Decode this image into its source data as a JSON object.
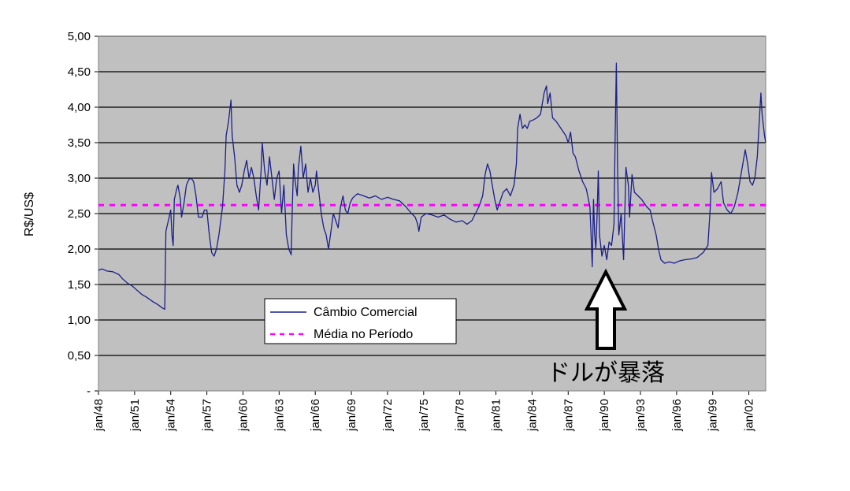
{
  "chart_data": {
    "type": "line",
    "title": "",
    "xlabel": "",
    "ylabel": "R$/US$",
    "ylim": [
      0,
      5
    ],
    "xlim": [
      1948,
      2003.4
    ],
    "yticks": [
      {
        "value": 0,
        "label": "-"
      },
      {
        "value": 0.5,
        "label": "0,50"
      },
      {
        "value": 1.0,
        "label": "1,00"
      },
      {
        "value": 1.5,
        "label": "1,50"
      },
      {
        "value": 2.0,
        "label": "2,00"
      },
      {
        "value": 2.5,
        "label": "2,50"
      },
      {
        "value": 3.0,
        "label": "3,00"
      },
      {
        "value": 3.5,
        "label": "3,50"
      },
      {
        "value": 4.0,
        "label": "4,00"
      },
      {
        "value": 4.5,
        "label": "4,50"
      },
      {
        "value": 5.0,
        "label": "5,00"
      }
    ],
    "xticks": [
      {
        "value": 1948,
        "label": "jan/48"
      },
      {
        "value": 1951,
        "label": "jan/51"
      },
      {
        "value": 1954,
        "label": "jan/54"
      },
      {
        "value": 1957,
        "label": "jan/57"
      },
      {
        "value": 1960,
        "label": "jan/60"
      },
      {
        "value": 1963,
        "label": "jan/63"
      },
      {
        "value": 1966,
        "label": "jan/66"
      },
      {
        "value": 1969,
        "label": "jan/69"
      },
      {
        "value": 1972,
        "label": "jan/72"
      },
      {
        "value": 1975,
        "label": "jan/75"
      },
      {
        "value": 1978,
        "label": "jan/78"
      },
      {
        "value": 1981,
        "label": "jan/81"
      },
      {
        "value": 1984,
        "label": "jan/84"
      },
      {
        "value": 1987,
        "label": "jan/87"
      },
      {
        "value": 1990,
        "label": "jan/90"
      },
      {
        "value": 1993,
        "label": "jan/93"
      },
      {
        "value": 1996,
        "label": "jan/96"
      },
      {
        "value": 1999,
        "label": "jan/99"
      },
      {
        "value": 2002,
        "label": "jan/02"
      }
    ],
    "grid": true,
    "background_color": "#c0c0c0",
    "series": [
      {
        "name": "Câmbio Comercial",
        "color": "#1a1f8a",
        "style": "solid",
        "points": [
          [
            1948.0,
            1.7
          ],
          [
            1948.3,
            1.72
          ],
          [
            1948.7,
            1.69
          ],
          [
            1949.2,
            1.68
          ],
          [
            1949.7,
            1.64
          ],
          [
            1950.0,
            1.58
          ],
          [
            1950.4,
            1.52
          ],
          [
            1950.8,
            1.48
          ],
          [
            1951.2,
            1.42
          ],
          [
            1951.6,
            1.36
          ],
          [
            1952.0,
            1.32
          ],
          [
            1952.5,
            1.26
          ],
          [
            1952.9,
            1.22
          ],
          [
            1953.3,
            1.17
          ],
          [
            1953.5,
            1.15
          ],
          [
            1953.6,
            2.25
          ],
          [
            1953.8,
            2.4
          ],
          [
            1954.0,
            2.55
          ],
          [
            1954.1,
            2.2
          ],
          [
            1954.2,
            2.05
          ],
          [
            1954.3,
            2.7
          ],
          [
            1954.5,
            2.85
          ],
          [
            1954.6,
            2.9
          ],
          [
            1954.8,
            2.7
          ],
          [
            1954.9,
            2.45
          ],
          [
            1955.1,
            2.65
          ],
          [
            1955.3,
            2.9
          ],
          [
            1955.5,
            2.98
          ],
          [
            1955.7,
            3.0
          ],
          [
            1955.9,
            2.95
          ],
          [
            1956.1,
            2.75
          ],
          [
            1956.3,
            2.45
          ],
          [
            1956.6,
            2.45
          ],
          [
            1956.8,
            2.55
          ],
          [
            1957.0,
            2.55
          ],
          [
            1957.2,
            2.2
          ],
          [
            1957.4,
            1.95
          ],
          [
            1957.6,
            1.9
          ],
          [
            1957.8,
            2.0
          ],
          [
            1958.0,
            2.2
          ],
          [
            1958.3,
            2.6
          ],
          [
            1958.5,
            3.1
          ],
          [
            1958.6,
            3.6
          ],
          [
            1958.8,
            3.8
          ],
          [
            1959.0,
            4.1
          ],
          [
            1959.1,
            3.6
          ],
          [
            1959.3,
            3.3
          ],
          [
            1959.5,
            2.9
          ],
          [
            1959.7,
            2.8
          ],
          [
            1959.9,
            2.9
          ],
          [
            1960.1,
            3.1
          ],
          [
            1960.3,
            3.25
          ],
          [
            1960.5,
            3.0
          ],
          [
            1960.7,
            3.15
          ],
          [
            1960.9,
            3.0
          ],
          [
            1961.1,
            2.75
          ],
          [
            1961.3,
            2.55
          ],
          [
            1961.5,
            3.1
          ],
          [
            1961.6,
            3.5
          ],
          [
            1961.8,
            3.1
          ],
          [
            1962.0,
            2.9
          ],
          [
            1962.2,
            3.3
          ],
          [
            1962.4,
            3.0
          ],
          [
            1962.6,
            2.7
          ],
          [
            1962.8,
            3.0
          ],
          [
            1963.0,
            3.1
          ],
          [
            1963.2,
            2.5
          ],
          [
            1963.4,
            2.9
          ],
          [
            1963.6,
            2.2
          ],
          [
            1963.8,
            2.0
          ],
          [
            1964.0,
            1.92
          ],
          [
            1964.1,
            2.6
          ],
          [
            1964.2,
            3.2
          ],
          [
            1964.3,
            3.0
          ],
          [
            1964.5,
            2.75
          ],
          [
            1964.6,
            3.15
          ],
          [
            1964.8,
            3.45
          ],
          [
            1965.0,
            3.0
          ],
          [
            1965.2,
            3.2
          ],
          [
            1965.4,
            2.8
          ],
          [
            1965.6,
            3.0
          ],
          [
            1965.8,
            2.8
          ],
          [
            1966.0,
            2.9
          ],
          [
            1966.1,
            3.1
          ],
          [
            1966.3,
            2.8
          ],
          [
            1966.5,
            2.5
          ],
          [
            1966.7,
            2.3
          ],
          [
            1966.9,
            2.2
          ],
          [
            1967.1,
            2.0
          ],
          [
            1967.3,
            2.25
          ],
          [
            1967.5,
            2.5
          ],
          [
            1967.7,
            2.4
          ],
          [
            1967.9,
            2.3
          ],
          [
            1968.1,
            2.6
          ],
          [
            1968.3,
            2.75
          ],
          [
            1968.5,
            2.55
          ],
          [
            1968.7,
            2.5
          ],
          [
            1968.9,
            2.65
          ],
          [
            1969.1,
            2.72
          ],
          [
            1969.5,
            2.78
          ],
          [
            1970.0,
            2.75
          ],
          [
            1970.5,
            2.72
          ],
          [
            1971.0,
            2.75
          ],
          [
            1971.5,
            2.7
          ],
          [
            1972.0,
            2.73
          ],
          [
            1972.5,
            2.7
          ],
          [
            1973.0,
            2.68
          ],
          [
            1973.5,
            2.6
          ],
          [
            1974.0,
            2.5
          ],
          [
            1974.3,
            2.45
          ],
          [
            1974.5,
            2.35
          ],
          [
            1974.6,
            2.25
          ],
          [
            1974.8,
            2.45
          ],
          [
            1975.2,
            2.5
          ],
          [
            1975.7,
            2.48
          ],
          [
            1976.2,
            2.45
          ],
          [
            1976.7,
            2.48
          ],
          [
            1977.2,
            2.42
          ],
          [
            1977.7,
            2.38
          ],
          [
            1978.2,
            2.4
          ],
          [
            1978.6,
            2.35
          ],
          [
            1979.0,
            2.4
          ],
          [
            1979.3,
            2.5
          ],
          [
            1979.6,
            2.6
          ],
          [
            1979.9,
            2.75
          ],
          [
            1980.1,
            3.05
          ],
          [
            1980.3,
            3.2
          ],
          [
            1980.5,
            3.1
          ],
          [
            1980.7,
            2.9
          ],
          [
            1980.9,
            2.7
          ],
          [
            1981.1,
            2.55
          ],
          [
            1981.3,
            2.65
          ],
          [
            1981.6,
            2.8
          ],
          [
            1981.9,
            2.85
          ],
          [
            1982.2,
            2.75
          ],
          [
            1982.5,
            2.9
          ],
          [
            1982.7,
            3.2
          ],
          [
            1982.8,
            3.7
          ],
          [
            1983.0,
            3.9
          ],
          [
            1983.2,
            3.7
          ],
          [
            1983.4,
            3.75
          ],
          [
            1983.6,
            3.7
          ],
          [
            1983.8,
            3.8
          ],
          [
            1984.1,
            3.82
          ],
          [
            1984.4,
            3.85
          ],
          [
            1984.7,
            3.9
          ],
          [
            1985.0,
            4.2
          ],
          [
            1985.2,
            4.3
          ],
          [
            1985.3,
            4.05
          ],
          [
            1985.5,
            4.2
          ],
          [
            1985.7,
            3.85
          ],
          [
            1986.0,
            3.8
          ],
          [
            1986.4,
            3.7
          ],
          [
            1986.8,
            3.6
          ],
          [
            1987.0,
            3.5
          ],
          [
            1987.2,
            3.65
          ],
          [
            1987.4,
            3.35
          ],
          [
            1987.6,
            3.3
          ],
          [
            1987.9,
            3.1
          ],
          [
            1988.2,
            2.95
          ],
          [
            1988.5,
            2.85
          ],
          [
            1988.8,
            2.6
          ],
          [
            1988.9,
            2.2
          ],
          [
            1989.0,
            1.75
          ],
          [
            1989.1,
            2.7
          ],
          [
            1989.2,
            2.2
          ],
          [
            1989.3,
            2.0
          ],
          [
            1989.4,
            2.5
          ],
          [
            1989.5,
            3.1
          ],
          [
            1989.6,
            2.2
          ],
          [
            1989.8,
            1.9
          ],
          [
            1990.0,
            2.05
          ],
          [
            1990.2,
            1.85
          ],
          [
            1990.4,
            2.1
          ],
          [
            1990.6,
            2.05
          ],
          [
            1990.8,
            2.35
          ],
          [
            1990.9,
            3.6
          ],
          [
            1991.0,
            4.62
          ],
          [
            1991.1,
            3.2
          ],
          [
            1991.2,
            2.2
          ],
          [
            1991.4,
            2.5
          ],
          [
            1991.6,
            1.85
          ],
          [
            1991.8,
            3.15
          ],
          [
            1992.0,
            2.9
          ],
          [
            1992.1,
            2.45
          ],
          [
            1992.3,
            3.05
          ],
          [
            1992.5,
            2.8
          ],
          [
            1992.8,
            2.75
          ],
          [
            1993.1,
            2.7
          ],
          [
            1993.5,
            2.6
          ],
          [
            1993.8,
            2.55
          ],
          [
            1994.0,
            2.4
          ],
          [
            1994.3,
            2.2
          ],
          [
            1994.5,
            2.0
          ],
          [
            1994.7,
            1.85
          ],
          [
            1995.0,
            1.8
          ],
          [
            1995.4,
            1.82
          ],
          [
            1995.8,
            1.8
          ],
          [
            1996.2,
            1.83
          ],
          [
            1996.7,
            1.85
          ],
          [
            1997.2,
            1.86
          ],
          [
            1997.7,
            1.88
          ],
          [
            1998.2,
            1.95
          ],
          [
            1998.6,
            2.05
          ],
          [
            1998.8,
            2.6
          ],
          [
            1998.9,
            3.08
          ],
          [
            1999.1,
            2.8
          ],
          [
            1999.4,
            2.85
          ],
          [
            1999.7,
            2.95
          ],
          [
            1999.9,
            2.65
          ],
          [
            2000.2,
            2.55
          ],
          [
            2000.5,
            2.5
          ],
          [
            2000.8,
            2.6
          ],
          [
            2001.1,
            2.8
          ],
          [
            2001.4,
            3.1
          ],
          [
            2001.7,
            3.4
          ],
          [
            2001.9,
            3.2
          ],
          [
            2002.1,
            2.95
          ],
          [
            2002.3,
            2.9
          ],
          [
            2002.5,
            3.0
          ],
          [
            2002.7,
            3.3
          ],
          [
            2002.8,
            3.6
          ],
          [
            2003.0,
            4.2
          ],
          [
            2003.1,
            3.9
          ],
          [
            2003.3,
            3.6
          ],
          [
            2003.4,
            3.5
          ]
        ]
      },
      {
        "name": "Média no Período",
        "color": "#ff00ff",
        "style": "dashed",
        "constant": 2.62
      }
    ],
    "legend": {
      "position": "inside-lower-left",
      "entries": [
        "Câmbio Comercial",
        "Média no Período"
      ]
    },
    "annotation": {
      "text": "ドルが暴落",
      "points_to": [
        1989.6,
        1.7
      ],
      "marker": "up-arrow"
    }
  }
}
